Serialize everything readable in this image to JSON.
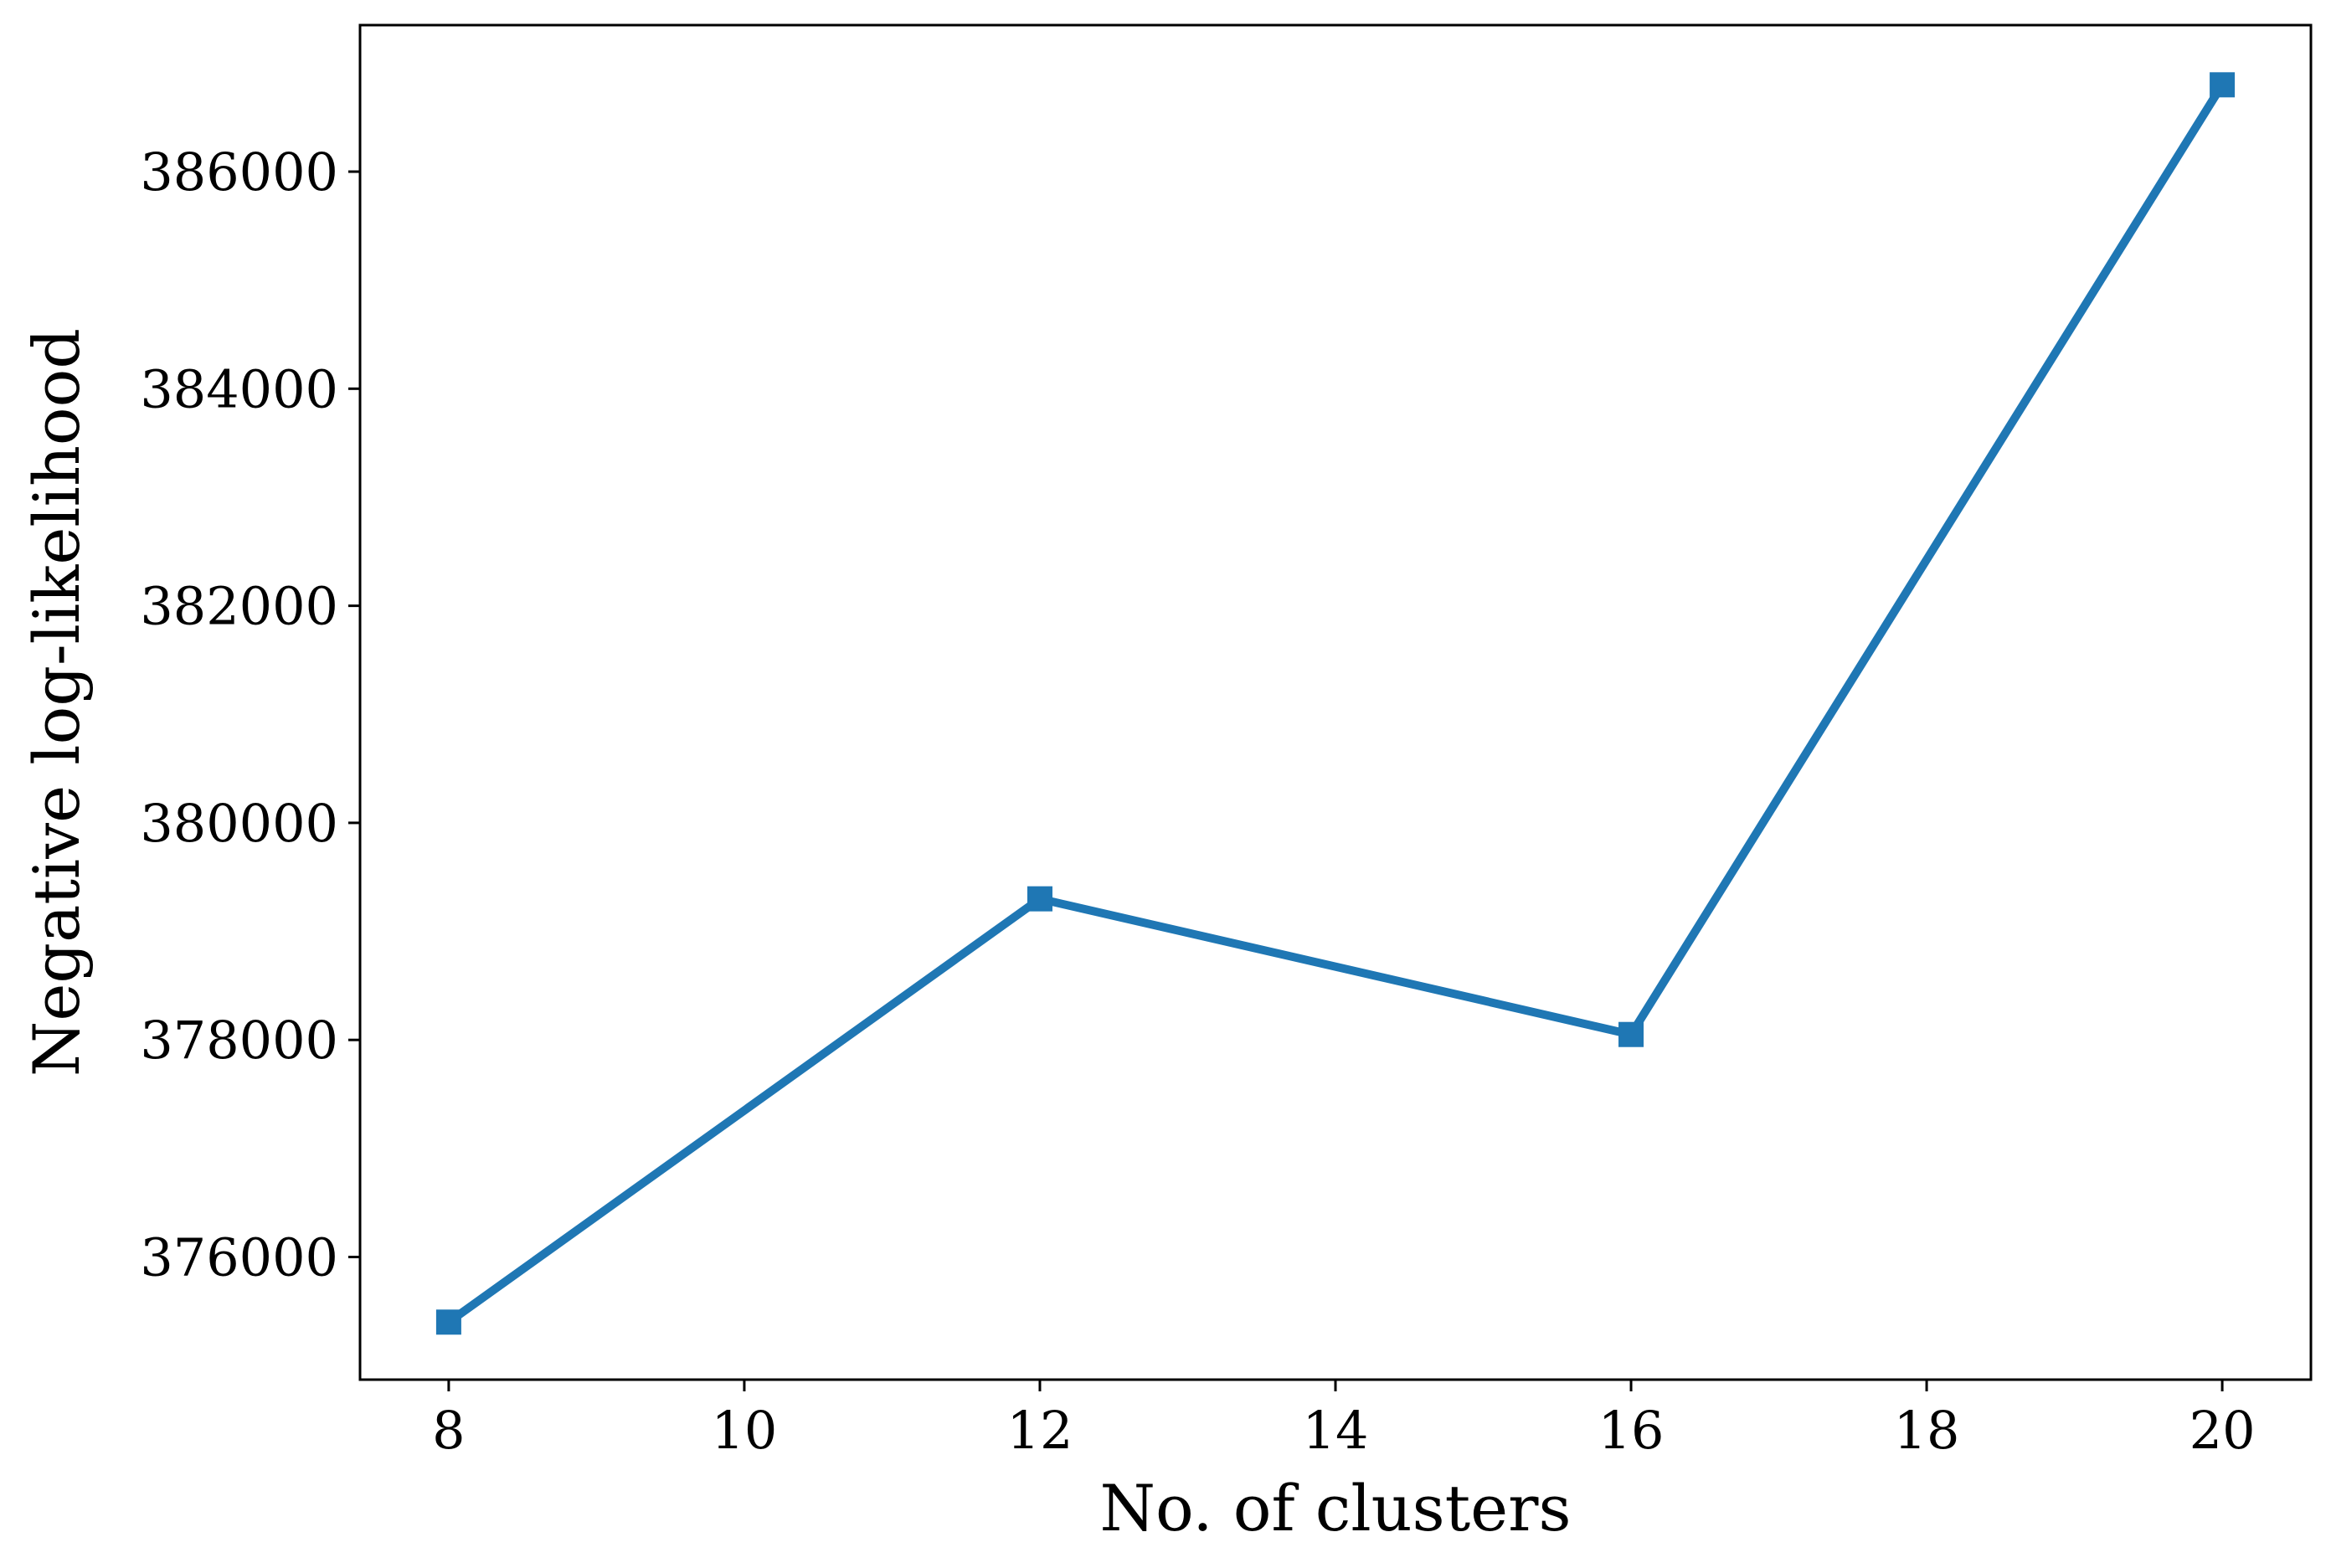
{
  "chart_data": {
    "type": "line",
    "title": "",
    "xlabel": "No. of clusters",
    "ylabel": "Negative log-likelihood",
    "x": [
      8,
      12,
      16,
      20
    ],
    "series": [
      {
        "values": [
          375400,
          379300,
          378050,
          386800
        ],
        "color": "#1f77b4",
        "marker": "square"
      }
    ],
    "xlim": [
      7.4,
      20.6
    ],
    "ylim": [
      374870,
      387350
    ],
    "xticks": [
      8,
      10,
      12,
      14,
      16,
      18,
      20
    ],
    "xtick_labels": [
      "8",
      "10",
      "12",
      "14",
      "16",
      "18",
      "20"
    ],
    "yticks": [
      376000,
      378000,
      380000,
      382000,
      384000,
      386000
    ],
    "ytick_labels": [
      "376000",
      "378000",
      "380000",
      "382000",
      "384000",
      "386000"
    ],
    "grid": false,
    "legend": "none"
  }
}
